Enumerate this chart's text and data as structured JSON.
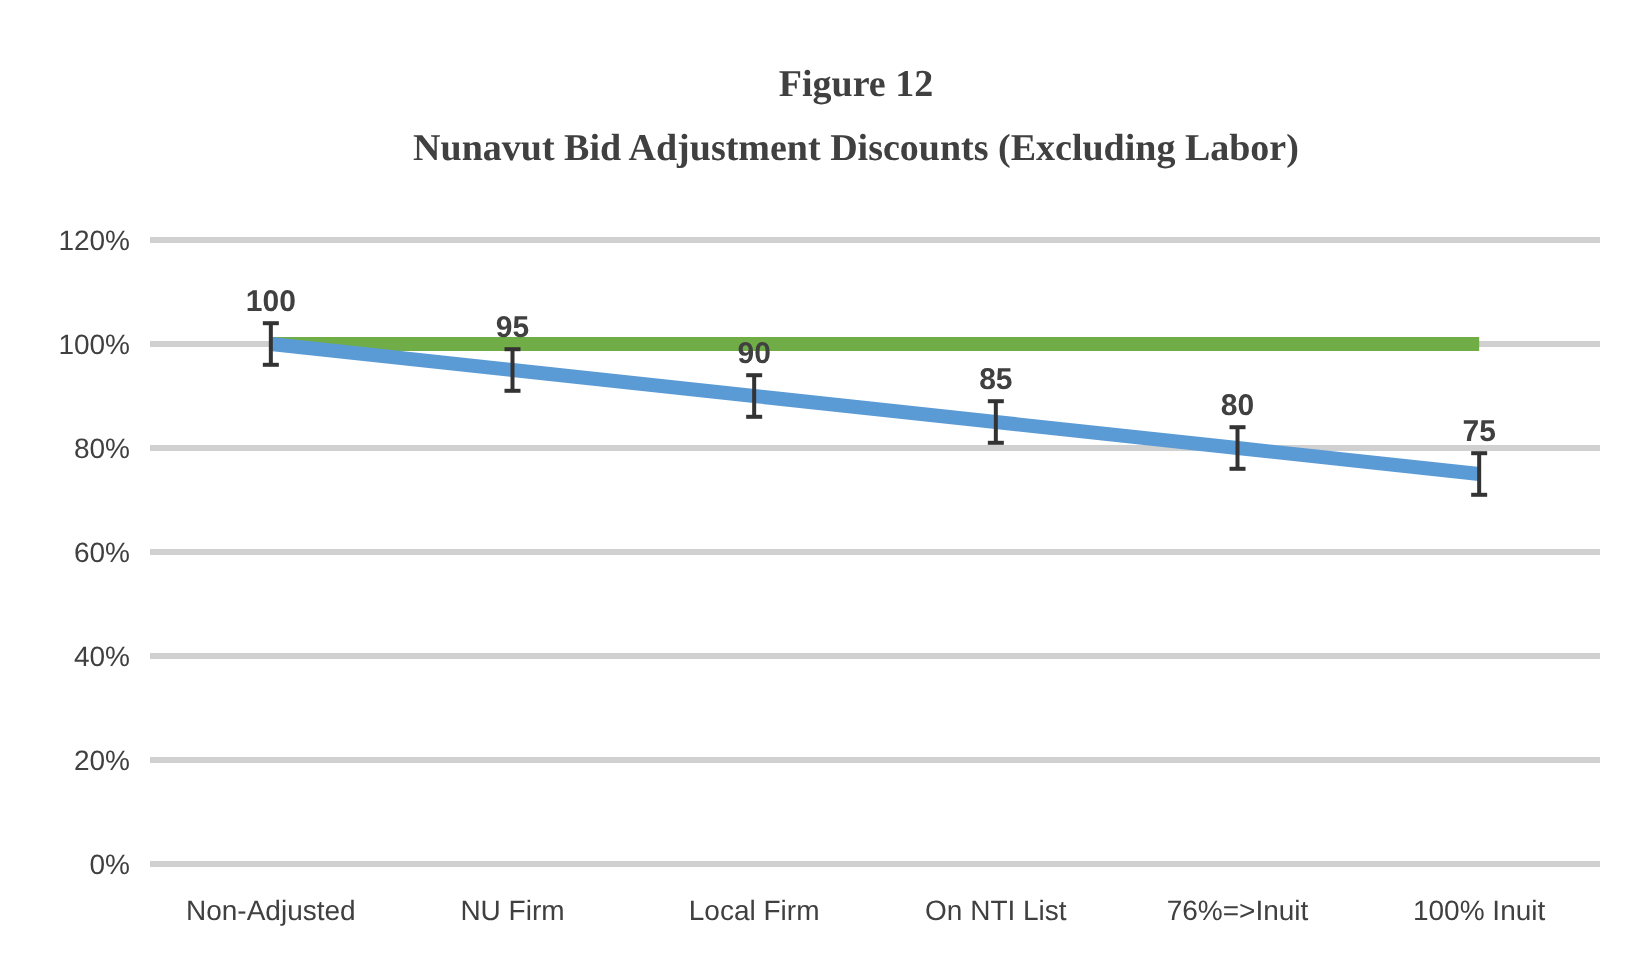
{
  "chart_data": {
    "type": "line",
    "title": "Figure 12",
    "subtitle": "Nunavut Bid Adjustment Discounts (Excluding Labor)",
    "categories": [
      "Non-Adjusted",
      "NU Firm",
      "Local Firm",
      "On NTI List",
      "76%=>Inuit",
      "100% Inuit"
    ],
    "series": [
      {
        "color": "#70ad47",
        "values": [
          100,
          100,
          100,
          100,
          100,
          100
        ]
      },
      {
        "color": "#5b9bd5",
        "values": [
          100,
          95,
          90,
          85,
          80,
          75
        ],
        "errors": [
          4,
          4,
          4,
          4,
          4,
          4
        ],
        "value_labels": [
          "100",
          "95",
          "90",
          "85",
          "80",
          "75"
        ]
      }
    ],
    "ylim": [
      0,
      120
    ],
    "yticks": [
      {
        "value": 0,
        "label": "0%"
      },
      {
        "value": 20,
        "label": "20%"
      },
      {
        "value": 40,
        "label": "40%"
      },
      {
        "value": 60,
        "label": "60%"
      },
      {
        "value": 80,
        "label": "80%"
      },
      {
        "value": 100,
        "label": "100%"
      },
      {
        "value": 120,
        "label": "120%"
      }
    ],
    "grid": "y",
    "line_style": "solid",
    "marker": "none"
  }
}
